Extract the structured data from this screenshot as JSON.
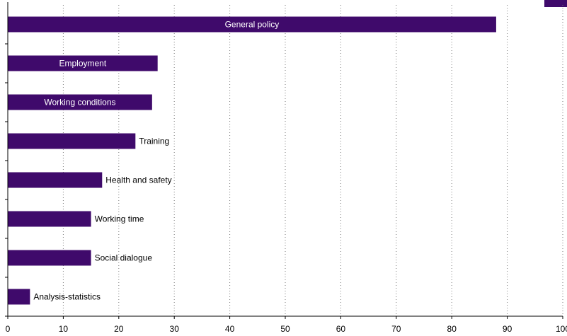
{
  "chart_data": {
    "type": "bar",
    "orientation": "horizontal",
    "categories": [
      "General policy",
      "Employment",
      "Working conditions",
      "Training",
      "Health and safety",
      "Working time",
      "Social dialogue",
      "Analysis-statistics"
    ],
    "values": [
      88,
      27,
      26,
      23,
      17,
      15,
      15,
      4
    ],
    "xlim": [
      0,
      100
    ],
    "xticks": [
      "0",
      "10",
      "20",
      "30",
      "40",
      "50",
      "60",
      "70",
      "80",
      "90",
      "100"
    ],
    "grid": "vertical dotted",
    "bar_color": "#3f0a6b",
    "title": "",
    "xlabel": "",
    "ylabel": ""
  }
}
